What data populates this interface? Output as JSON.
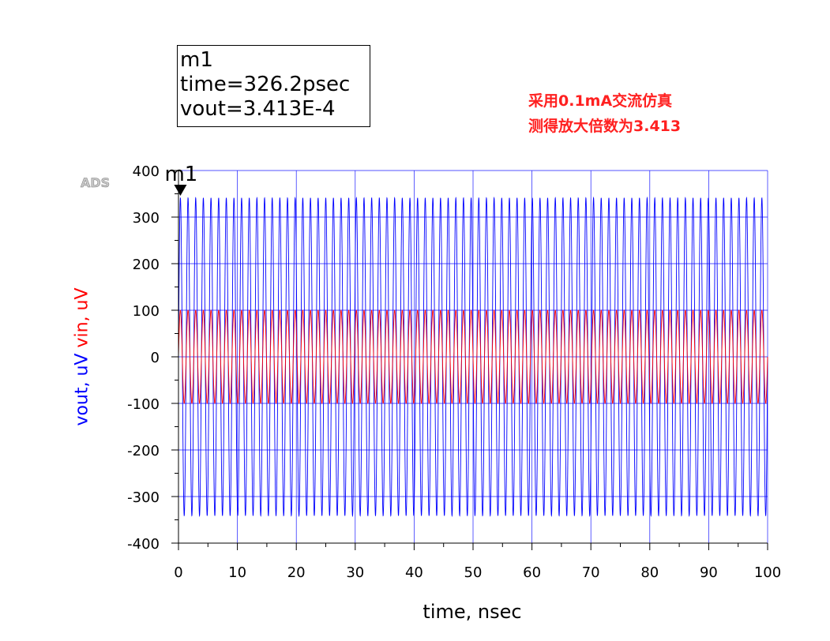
{
  "marker": {
    "name": "m1",
    "time_line": "time=326.2psec",
    "value_line": "vout=3.413E-4",
    "time_nsec": 0.3262,
    "value_uV": 341.3
  },
  "annotation": {
    "line1": "采用0.1mA交流仿真",
    "line2": "测得放大倍数为3.413"
  },
  "logo": "ADS",
  "colors": {
    "vout": "#0000ff",
    "vin": "#ff0000",
    "grid": "#1a1aff",
    "axis": "#000000"
  },
  "chart_data": {
    "type": "line",
    "xlabel": "time, nsec",
    "ylabel_series": [
      {
        "text": "vout, uV"
      },
      {
        "text": "vin, uV"
      }
    ],
    "xlim": [
      0,
      100
    ],
    "ylim": [
      -400,
      400
    ],
    "x_ticks": [
      "0",
      "10",
      "20",
      "30",
      "40",
      "50",
      "60",
      "70",
      "80",
      "90",
      "100"
    ],
    "y_ticks": [
      "400",
      "300",
      "200",
      "100",
      "0",
      "-100",
      "-200",
      "-300",
      "-400"
    ],
    "x_tick_values": [
      0,
      10,
      20,
      30,
      40,
      50,
      60,
      70,
      80,
      90,
      100
    ],
    "y_tick_values": [
      400,
      300,
      200,
      100,
      0,
      -100,
      -200,
      -300,
      -400
    ],
    "grid": true,
    "series": [
      {
        "name": "vout",
        "unit": "uV",
        "amplitude": 341.3,
        "frequency_GHz": 0.77,
        "shape": "sine"
      },
      {
        "name": "vin",
        "unit": "uV",
        "amplitude": 100,
        "frequency_GHz": 0.77,
        "shape": "sine"
      }
    ]
  }
}
